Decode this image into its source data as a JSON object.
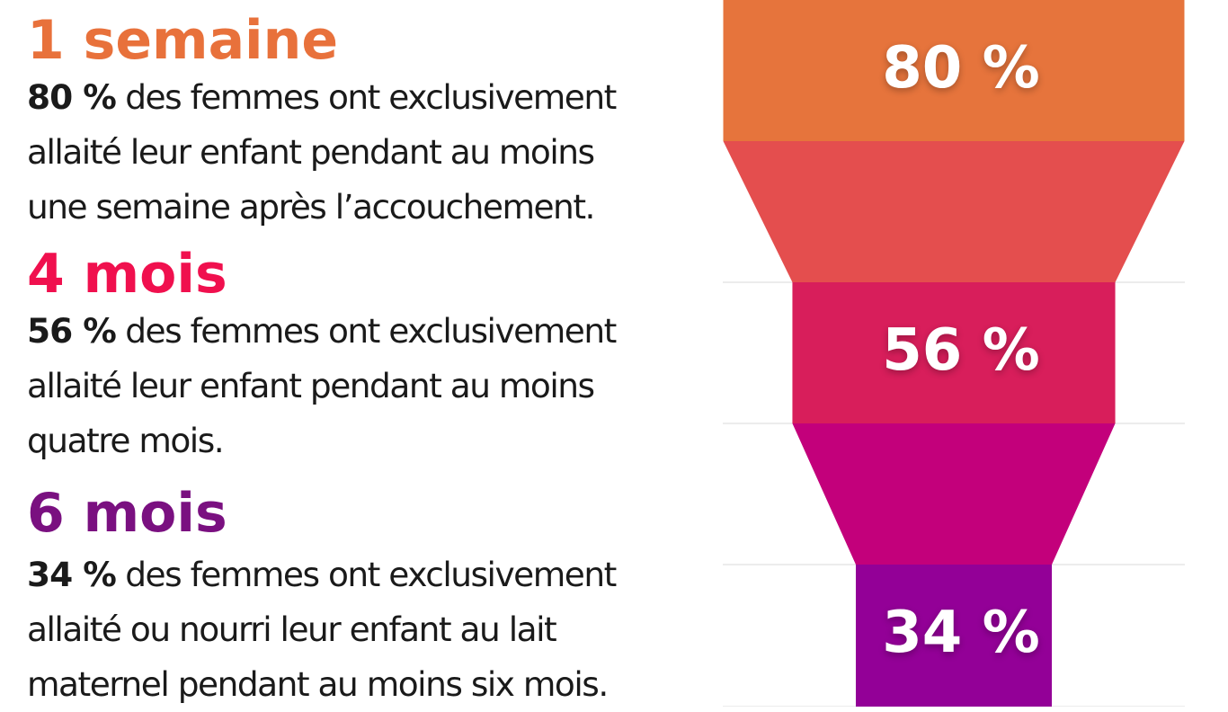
{
  "sections": [
    {
      "heading": "1 semaine",
      "heading_color": "#e8713b",
      "pct": "80 %",
      "lines": [
        " des femmes ont exclusivement",
        "allaité leur enfant pendant au moins",
        "une semaine après l’accouchement."
      ]
    },
    {
      "heading": "4 mois",
      "heading_color": "#f0104e",
      "pct": "56 %",
      "lines": [
        " des femmes ont exclusivement",
        "allaité leur enfant pendant au moins",
        "quatre mois."
      ]
    },
    {
      "heading": "6 mois",
      "heading_color": "#7a1080",
      "pct": "34 %",
      "lines": [
        " des femmes ont exclusivement",
        "allaité ou nourri leur enfant au lait",
        "maternel pendant au moins six mois."
      ]
    }
  ],
  "chart_data": {
    "type": "funnel",
    "categories": [
      "1 semaine",
      "4 mois",
      "6 mois"
    ],
    "values": [
      80,
      56,
      34
    ],
    "labels": [
      "80 %",
      "56 %",
      "34 %"
    ],
    "colors": {
      "stage": [
        "#e6743c",
        "#d81e5b",
        "#930097"
      ],
      "transition": [
        "#e44e4e",
        "#c3007b"
      ],
      "divider": "#d9d9d9"
    }
  }
}
